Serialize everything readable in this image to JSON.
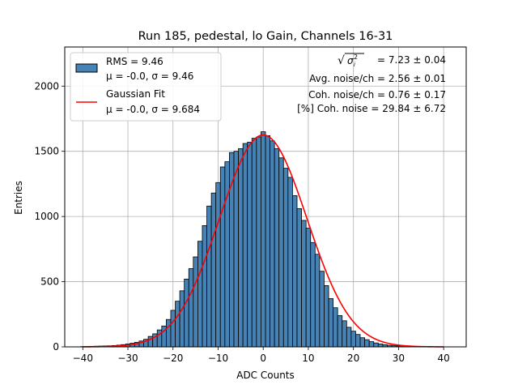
{
  "chart_data": {
    "type": "bar",
    "title": "Run 185, pedestal, lo Gain, Channels 16-31",
    "xlabel": "ADC Counts",
    "ylabel": "Entries",
    "xlim": [
      -44,
      45
    ],
    "ylim": [
      0,
      2300
    ],
    "xticks": [
      -40,
      -30,
      -20,
      -10,
      0,
      10,
      20,
      30,
      40
    ],
    "yticks": [
      0,
      500,
      1000,
      1500,
      2000
    ],
    "xtick_labels": [
      "−40",
      "−30",
      "−20",
      "−10",
      "0",
      "10",
      "20",
      "30",
      "40"
    ],
    "ytick_labels": [
      "0",
      "500",
      "1000",
      "1500",
      "2000"
    ],
    "grid": true,
    "bin_width": 1,
    "colors": {
      "bars": "#4682b4",
      "bar_edge": "#000000",
      "fit": "#ff0000"
    },
    "histogram": {
      "name": "RMS = 9.46",
      "stats": "μ = -0.0, σ = 9.46",
      "bin_centers": [
        -40,
        -39,
        -38,
        -37,
        -36,
        -35,
        -34,
        -33,
        -32,
        -31,
        -30,
        -29,
        -28,
        -27,
        -26,
        -25,
        -24,
        -23,
        -22,
        -21,
        -20,
        -19,
        -18,
        -17,
        -16,
        -15,
        -14,
        -13,
        -12,
        -11,
        -10,
        -9,
        -8,
        -7,
        -6,
        -5,
        -4,
        -3,
        -2,
        -1,
        0,
        1,
        2,
        3,
        4,
        5,
        6,
        7,
        8,
        9,
        10,
        11,
        12,
        13,
        14,
        15,
        16,
        17,
        18,
        19,
        20,
        21,
        22,
        23,
        24,
        25,
        26,
        27,
        28,
        29,
        30,
        31,
        32,
        33,
        34,
        35,
        36,
        37,
        38,
        39,
        40
      ],
      "values": [
        2,
        3,
        4,
        5,
        6,
        7,
        8,
        10,
        13,
        17,
        22,
        28,
        35,
        45,
        58,
        80,
        100,
        130,
        160,
        210,
        280,
        350,
        430,
        520,
        600,
        690,
        810,
        930,
        1080,
        1180,
        1260,
        1380,
        1420,
        1490,
        1500,
        1520,
        1560,
        1570,
        1600,
        1610,
        1650,
        1620,
        1580,
        1520,
        1450,
        1370,
        1300,
        1160,
        1060,
        970,
        910,
        800,
        710,
        580,
        470,
        370,
        300,
        240,
        200,
        150,
        120,
        95,
        70,
        55,
        40,
        30,
        22,
        16,
        12,
        9,
        7,
        5,
        4,
        3,
        2,
        2,
        1,
        1,
        1,
        0,
        0
      ]
    },
    "fit": {
      "name": "Gaussian Fit",
      "stats": "μ = -0.0, σ = 9.684",
      "mu": 0.0,
      "sigma": 9.684,
      "amplitude": 1625,
      "x_range": [
        -40,
        40
      ]
    },
    "legend": {
      "placement": "top-left"
    },
    "annotations": {
      "sigma_label": "= 7.23 ± 0.04",
      "avg_noise": "Avg. noise/ch = 2.56 ± 0.01",
      "coh_noise": "Coh. noise/ch = 0.76 ± 0.17",
      "coh_percent": "[%] Coh. noise = 29.84 ± 6.72"
    }
  }
}
